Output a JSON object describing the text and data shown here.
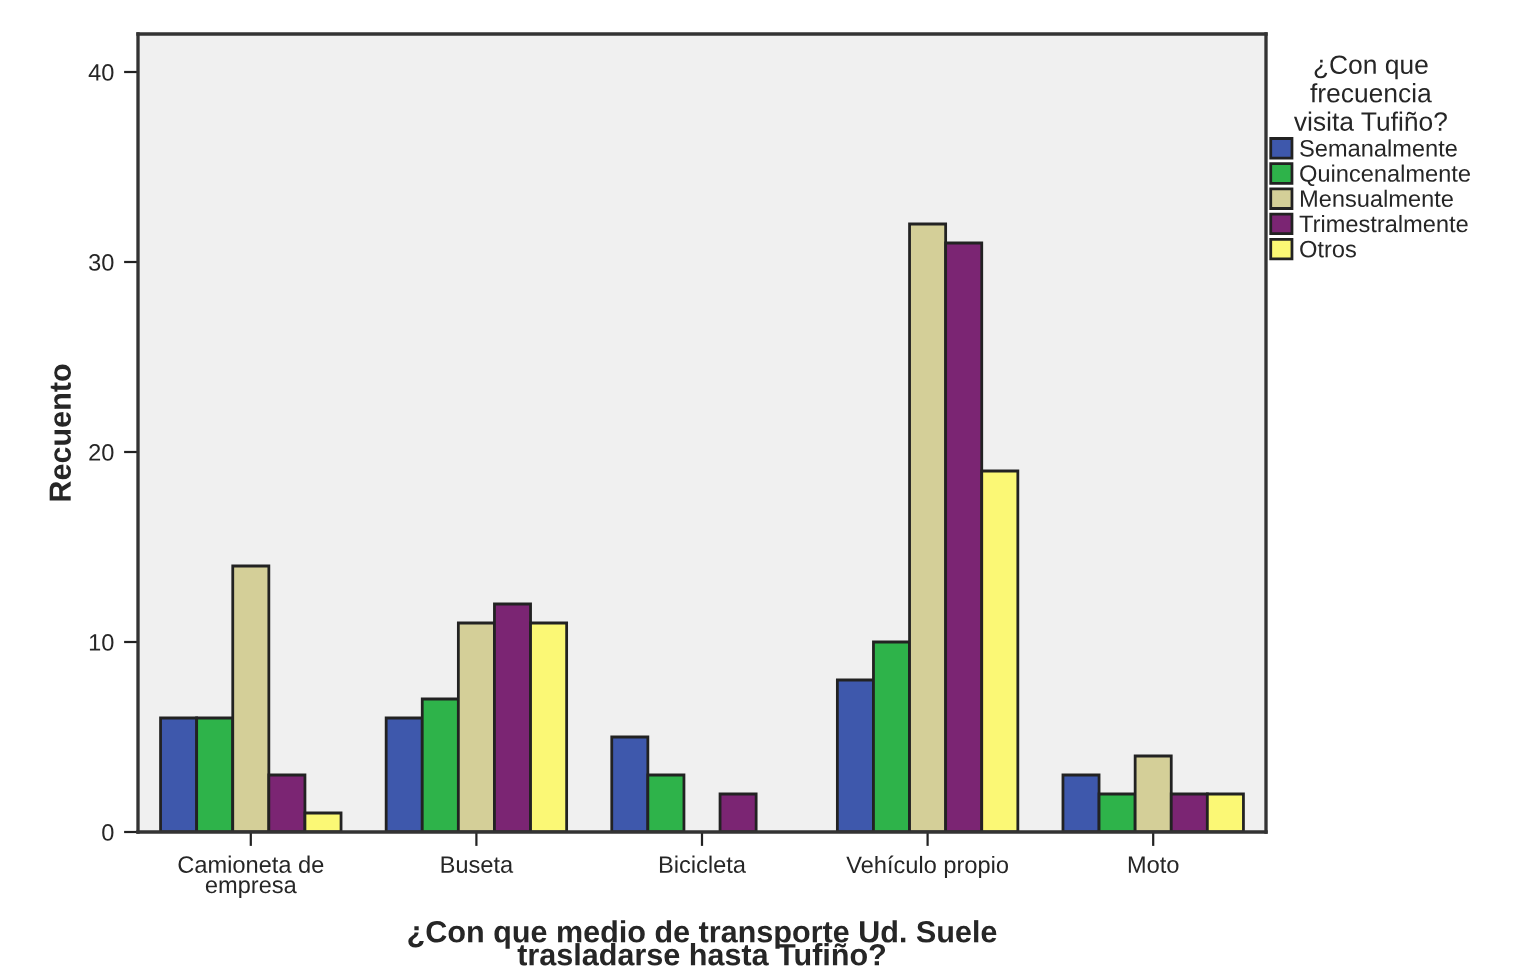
{
  "chart_data": {
    "type": "bar",
    "xlabel": "¿Con que medio de transporte Ud. Suele\ntrasladarse hasta Tufiño?",
    "ylabel": "Recuento",
    "legend_title": "¿Con que\nfrecuencia\nvisita Tufiño?",
    "categories": [
      "Camioneta de\nempresa",
      "Buseta",
      "Bicicleta",
      "Vehículo propio",
      "Moto"
    ],
    "series": [
      {
        "name": "Semanalmente",
        "color": "#3e58ac",
        "values": [
          6,
          6,
          5,
          8,
          3
        ]
      },
      {
        "name": "Quincenalmente",
        "color": "#2eb34a",
        "values": [
          6,
          7,
          3,
          10,
          2
        ]
      },
      {
        "name": "Mensualmente",
        "color": "#d4cf98",
        "values": [
          14,
          11,
          null,
          32,
          4
        ]
      },
      {
        "name": "Trimestralmente",
        "color": "#7b2573",
        "values": [
          3,
          12,
          2,
          31,
          2
        ]
      },
      {
        "name": "Otros",
        "color": "#fbf875",
        "values": [
          1,
          11,
          null,
          19,
          2
        ]
      }
    ],
    "ylim": [
      0,
      42
    ],
    "yticks": [
      0,
      10,
      20,
      30,
      40
    ],
    "grid": false,
    "legend": "top right"
  }
}
